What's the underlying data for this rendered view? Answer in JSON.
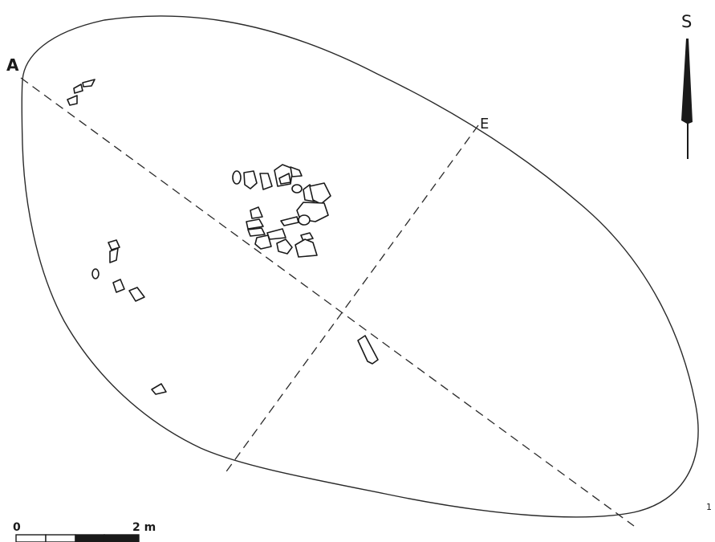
{
  "labels": {
    "section_start": "A",
    "section_end": "E",
    "north_arrow": "S",
    "figure_number": "1"
  },
  "scale_bar": {
    "start_label": "0",
    "end_label": "2 m",
    "segments": [
      "white",
      "white",
      "black",
      "black"
    ]
  },
  "colors": {
    "ink": "#1a1a1a",
    "paper": "#ffffff"
  }
}
